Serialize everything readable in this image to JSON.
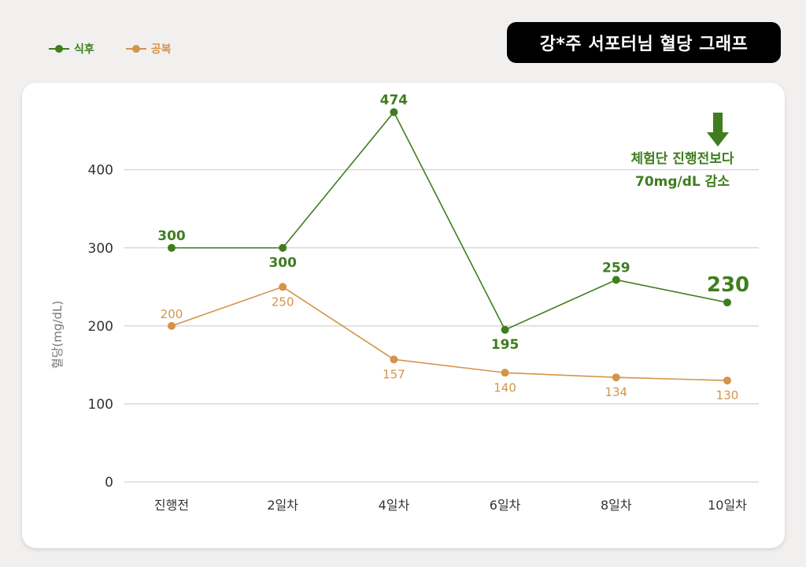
{
  "title": "강*주 서포터님 혈당 그래프",
  "legend": {
    "after_meal": "식후",
    "fasting": "공복"
  },
  "annotation": {
    "line1": "체험단 진행전보다",
    "line2": "70mg/dL 감소",
    "icon": "down-arrow-icon"
  },
  "colors": {
    "after_meal": "#3f7d1e",
    "fasting": "#d4944b",
    "grid": "#c8c8c8",
    "axis_text": "#333333",
    "ylabel": "#777777"
  },
  "chart_data": {
    "type": "line",
    "title": "강*주 서포터님 혈당 그래프",
    "xlabel": "",
    "ylabel": "혈당(mg/dL)",
    "categories": [
      "진행전",
      "2일차",
      "4일차",
      "6일차",
      "8일차",
      "10일차"
    ],
    "ylim": [
      0,
      500
    ],
    "yticks": [
      0,
      100,
      200,
      300,
      400
    ],
    "grid": true,
    "legend_position": "top-left",
    "series": [
      {
        "name": "식후",
        "values": [
          300,
          300,
          474,
          195,
          259,
          230
        ],
        "labels": [
          "300",
          "300",
          "474",
          "195",
          "259",
          "230"
        ],
        "label_side": [
          "above",
          "below",
          "above",
          "below",
          "above",
          "above"
        ]
      },
      {
        "name": "공복",
        "values": [
          200,
          250,
          157,
          140,
          134,
          130
        ],
        "labels": [
          "200",
          "250",
          "157",
          "140",
          "134",
          "130"
        ],
        "label_side": [
          "above",
          "below",
          "below",
          "below",
          "below",
          "below"
        ]
      }
    ]
  }
}
